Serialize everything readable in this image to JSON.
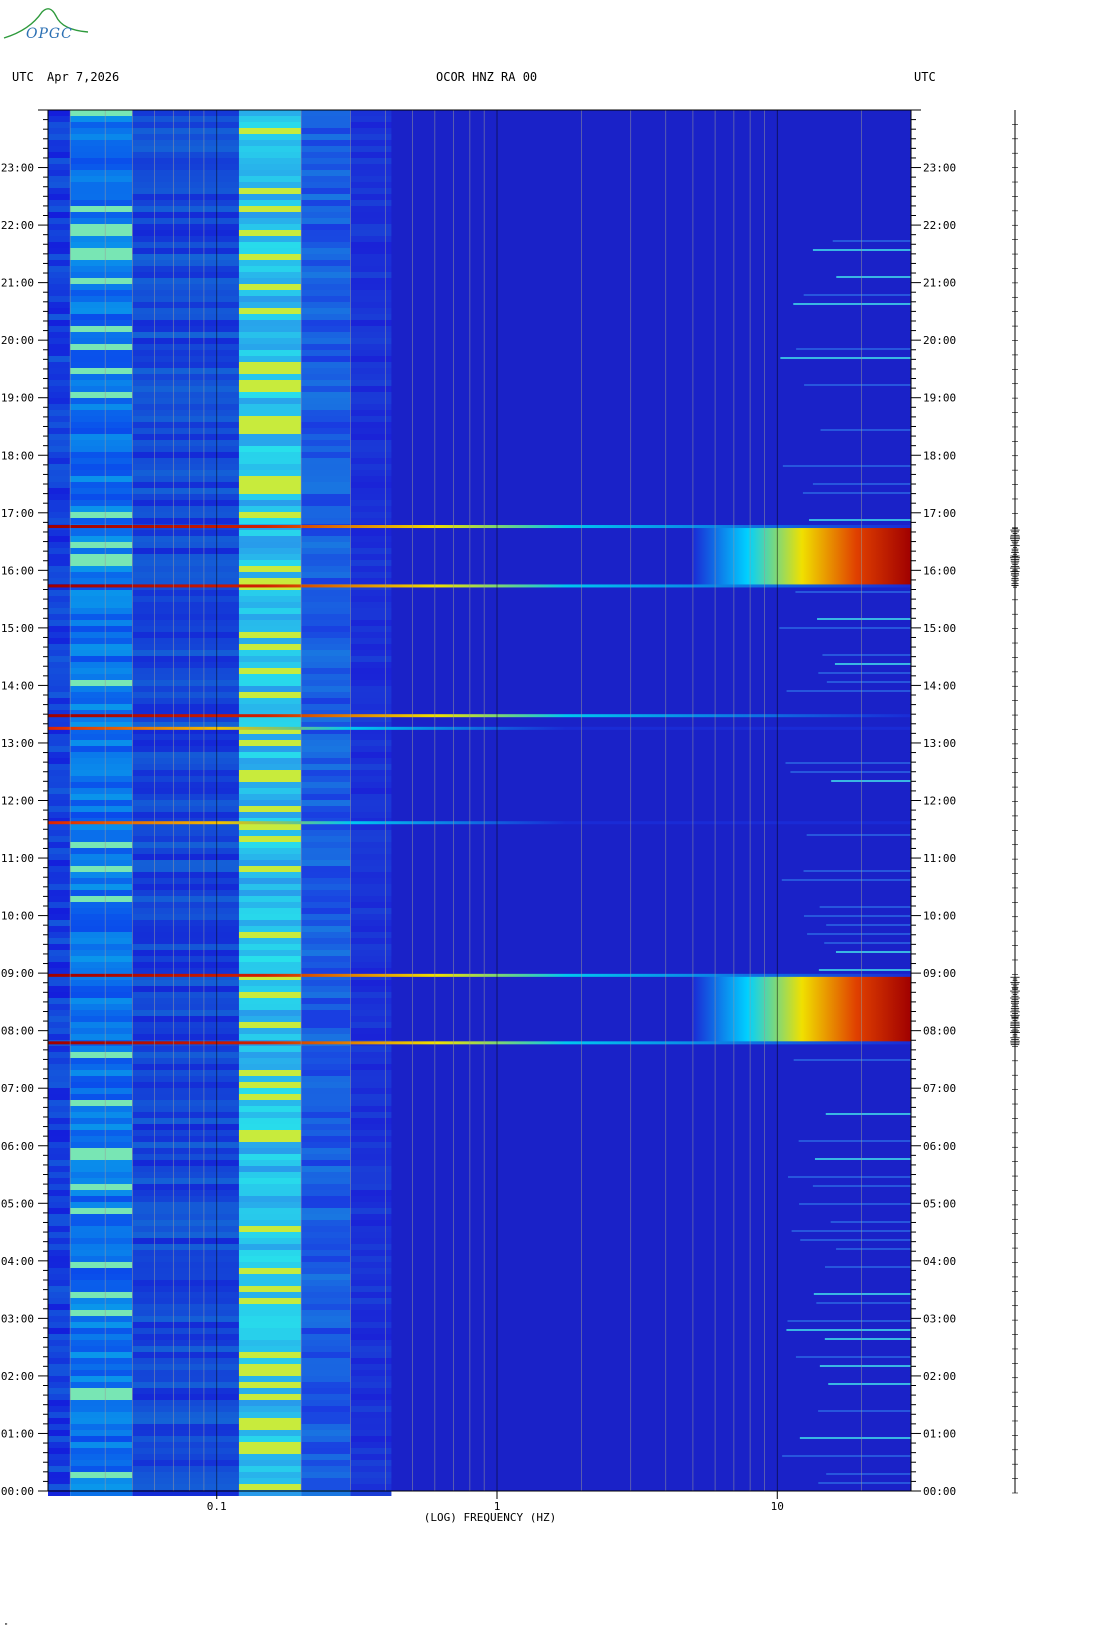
{
  "header": {
    "left_timezone": "UTC",
    "date": "Apr 7,2026",
    "station": "OCOR HNZ RA 00",
    "right_timezone": "UTC"
  },
  "logo": {
    "text": "OPGC"
  },
  "footer_mark": "\"",
  "colors": {
    "background": "#1a22c8",
    "low": "#1a2bd6",
    "mid": "#00c8f0",
    "high": "#f0f000",
    "max": "#a00000",
    "grid": "#9a9a9a"
  },
  "chart_data": {
    "type": "heatmap",
    "xlabel": "(LOG) FREQUENCY (HZ)",
    "xscale": "log",
    "xlim": [
      0.025,
      30
    ],
    "x_ticks": [
      {
        "value": 0.1,
        "label": "0.1"
      },
      {
        "value": 1,
        "label": "1"
      },
      {
        "value": 10,
        "label": "10"
      }
    ],
    "ylim_hours": [
      0,
      24
    ],
    "y_ticks": [
      {
        "hour": 0,
        "label": "00:00"
      },
      {
        "hour": 1,
        "label": "01:00"
      },
      {
        "hour": 2,
        "label": "02:00"
      },
      {
        "hour": 3,
        "label": "03:00"
      },
      {
        "hour": 4,
        "label": "04:00"
      },
      {
        "hour": 5,
        "label": "05:00"
      },
      {
        "hour": 6,
        "label": "06:00"
      },
      {
        "hour": 7,
        "label": "07:00"
      },
      {
        "hour": 8,
        "label": "08:00"
      },
      {
        "hour": 9,
        "label": "09:00"
      },
      {
        "hour": 10,
        "label": "10:00"
      },
      {
        "hour": 11,
        "label": "11:00"
      },
      {
        "hour": 12,
        "label": "12:00"
      },
      {
        "hour": 13,
        "label": "13:00"
      },
      {
        "hour": 14,
        "label": "14:00"
      },
      {
        "hour": 15,
        "label": "15:00"
      },
      {
        "hour": 16,
        "label": "16:00"
      },
      {
        "hour": 17,
        "label": "17:00"
      },
      {
        "hour": 18,
        "label": "18:00"
      },
      {
        "hour": 19,
        "label": "19:00"
      },
      {
        "hour": 20,
        "label": "20:00"
      },
      {
        "hour": 21,
        "label": "21:00"
      },
      {
        "hour": 22,
        "label": "22:00"
      },
      {
        "hour": 23,
        "label": "23:00"
      }
    ],
    "microseism_band_hz": [
      0.12,
      0.2
    ],
    "events": [
      {
        "start_hour": 7.78,
        "end_hour": 8.97,
        "min_freq_hz": 5,
        "intensity": "high"
      },
      {
        "start_hour": 15.72,
        "end_hour": 16.77,
        "min_freq_hz": 5,
        "intensity": "high"
      },
      {
        "start_hour": 13.45,
        "end_hour": 13.5,
        "min_freq_hz": 0.025,
        "intensity": "line"
      },
      {
        "start_hour": 13.25,
        "end_hour": 13.28,
        "min_freq_hz": 0.025,
        "intensity": "low-line"
      },
      {
        "start_hour": 11.62,
        "end_hour": 11.64,
        "min_freq_hz": 0.025,
        "intensity": "low-line"
      }
    ]
  }
}
